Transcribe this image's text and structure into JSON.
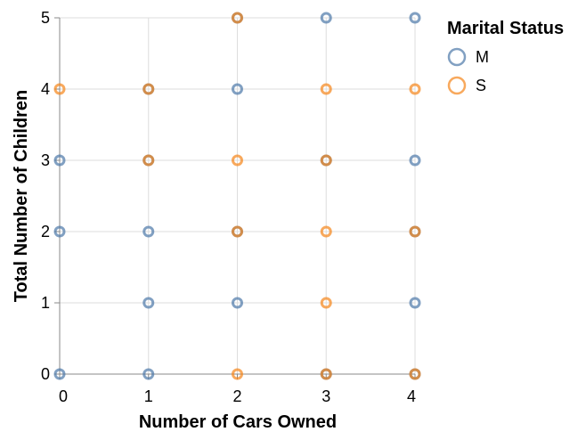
{
  "chart_data": {
    "type": "scatter",
    "xlabel": "Number of Cars Owned",
    "ylabel": "Total Number of Children",
    "xlim": [
      0,
      4
    ],
    "ylim": [
      0,
      5
    ],
    "x_ticks": [
      0,
      1,
      2,
      3,
      4
    ],
    "y_ticks": [
      0,
      1,
      2,
      3,
      4,
      5
    ],
    "grid": true,
    "legend": {
      "title": "Marital Status",
      "placement": "right",
      "entries": [
        {
          "label": "M",
          "color": "#4c78a8"
        },
        {
          "label": "S",
          "color": "#f58518"
        }
      ]
    },
    "series": [
      {
        "name": "M",
        "color": "#4c78a8",
        "points": [
          {
            "x": 0,
            "y": 0
          },
          {
            "x": 0,
            "y": 2
          },
          {
            "x": 0,
            "y": 3
          },
          {
            "x": 1,
            "y": 0
          },
          {
            "x": 1,
            "y": 1
          },
          {
            "x": 1,
            "y": 2
          },
          {
            "x": 1,
            "y": 3
          },
          {
            "x": 1,
            "y": 4
          },
          {
            "x": 2,
            "y": 1
          },
          {
            "x": 2,
            "y": 2
          },
          {
            "x": 2,
            "y": 4
          },
          {
            "x": 2,
            "y": 5
          },
          {
            "x": 3,
            "y": 0
          },
          {
            "x": 3,
            "y": 3
          },
          {
            "x": 3,
            "y": 5
          },
          {
            "x": 4,
            "y": 0
          },
          {
            "x": 4,
            "y": 1
          },
          {
            "x": 4,
            "y": 2
          },
          {
            "x": 4,
            "y": 3
          },
          {
            "x": 4,
            "y": 5
          }
        ]
      },
      {
        "name": "S",
        "color": "#f58518",
        "points": [
          {
            "x": 0,
            "y": 4
          },
          {
            "x": 1,
            "y": 3
          },
          {
            "x": 1,
            "y": 4
          },
          {
            "x": 2,
            "y": 0
          },
          {
            "x": 2,
            "y": 2
          },
          {
            "x": 2,
            "y": 3
          },
          {
            "x": 2,
            "y": 5
          },
          {
            "x": 3,
            "y": 0
          },
          {
            "x": 3,
            "y": 1
          },
          {
            "x": 3,
            "y": 2
          },
          {
            "x": 3,
            "y": 3
          },
          {
            "x": 3,
            "y": 4
          },
          {
            "x": 4,
            "y": 0
          },
          {
            "x": 4,
            "y": 2
          },
          {
            "x": 4,
            "y": 4
          }
        ]
      }
    ]
  }
}
